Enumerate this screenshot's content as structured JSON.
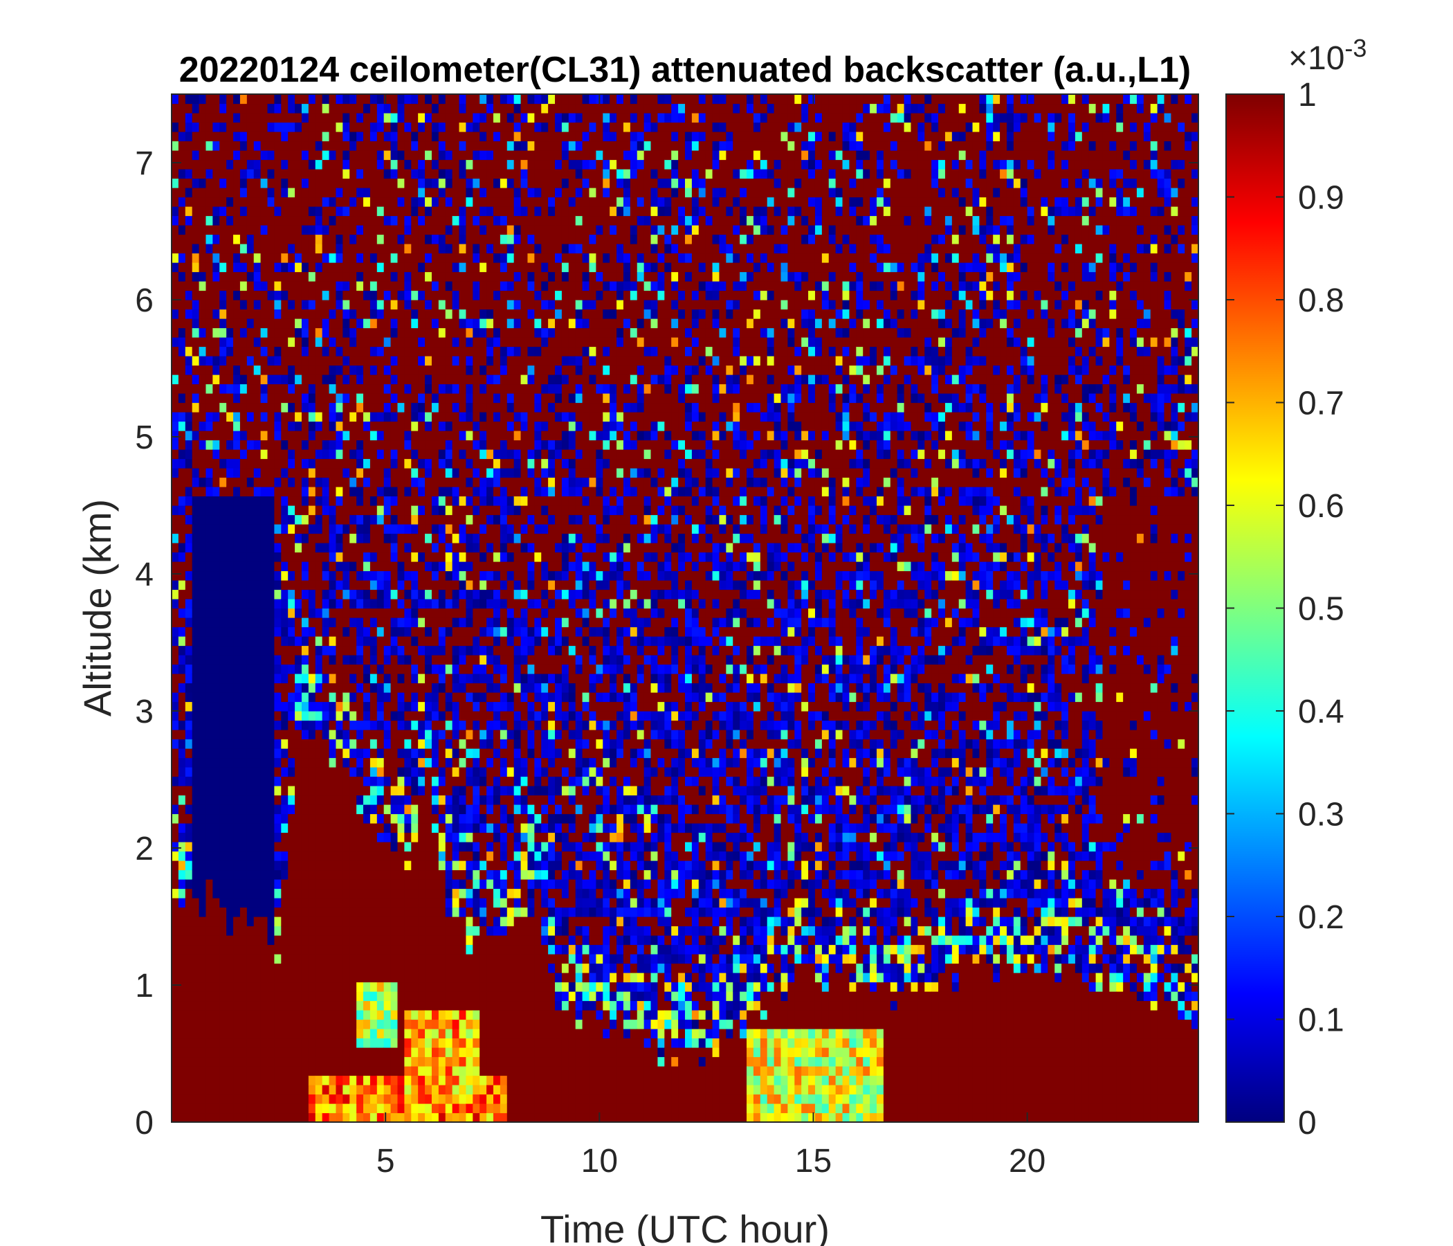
{
  "chart_data": {
    "type": "heatmap",
    "title": "20220124 ceilometer(CL31) attenuated backscatter (a.u.,L1)",
    "xlabel": "Time (UTC hour)",
    "ylabel": "Altitude (km)",
    "xlim": [
      0,
      24
    ],
    "ylim": [
      0,
      7.5
    ],
    "xticks": [
      5,
      10,
      15,
      20
    ],
    "yticks": [
      0,
      1,
      2,
      3,
      4,
      5,
      6,
      7
    ],
    "colorbar": {
      "clim": [
        0,
        1
      ],
      "ticks": [
        0,
        0.1,
        0.2,
        0.3,
        0.4,
        0.5,
        0.6,
        0.7,
        0.8,
        0.9,
        1
      ],
      "exponent_label": "×10",
      "exponent": "-3",
      "colormap": "jet",
      "colors": [
        "#00007f",
        "#0000ff",
        "#007fff",
        "#00ffff",
        "#7fff7f",
        "#ffff00",
        "#ff7f00",
        "#ff0000",
        "#7f0000"
      ]
    },
    "features": {
      "saturated_layer_top_km": [
        [
          0.0,
          1.6
        ],
        [
          0.5,
          1.6
        ],
        [
          1.0,
          1.7
        ],
        [
          1.5,
          1.4
        ],
        [
          2.0,
          1.5
        ],
        [
          2.5,
          1.3
        ],
        [
          3.0,
          2.9
        ],
        [
          4.0,
          2.6
        ],
        [
          4.5,
          2.2
        ],
        [
          5.0,
          2.0
        ],
        [
          5.5,
          1.9
        ],
        [
          6.0,
          2.4
        ],
        [
          6.5,
          1.5
        ],
        [
          7.0,
          1.3
        ],
        [
          8.0,
          1.5
        ],
        [
          8.5,
          1.6
        ],
        [
          9.0,
          0.8
        ],
        [
          10.0,
          0.7
        ],
        [
          11.0,
          0.7
        ],
        [
          11.5,
          0.5
        ],
        [
          12.0,
          0.45
        ],
        [
          12.5,
          0.45
        ],
        [
          13.0,
          0.6
        ],
        [
          14.0,
          0.9
        ],
        [
          15.0,
          1.1
        ],
        [
          16.0,
          1.0
        ],
        [
          17.0,
          0.9
        ],
        [
          18.0,
          1.0
        ],
        [
          19.0,
          1.2
        ],
        [
          20.0,
          1.1
        ],
        [
          21.0,
          1.1
        ],
        [
          22.0,
          1.0
        ],
        [
          23.0,
          0.9
        ],
        [
          24.0,
          0.8
        ]
      ],
      "clear_column_hours": [
        0.5,
        2.4
      ],
      "clear_column_top_km": 4.6,
      "late_plume_hours": [
        21.8,
        24.0
      ],
      "late_plume_base_km": 1.7,
      "enhanced_patches": [
        {
          "t0": 3.2,
          "t1": 7.8,
          "z0": 0.0,
          "z1": 0.35,
          "level": 0.75
        },
        {
          "t0": 4.3,
          "t1": 5.2,
          "z0": 0.55,
          "z1": 1.0,
          "level": 0.55
        },
        {
          "t0": 5.5,
          "t1": 7.2,
          "z0": 0.1,
          "z1": 0.8,
          "level": 0.7
        },
        {
          "t0": 13.5,
          "t1": 16.6,
          "z0": 0.0,
          "z1": 0.7,
          "level": 0.6
        }
      ]
    }
  }
}
